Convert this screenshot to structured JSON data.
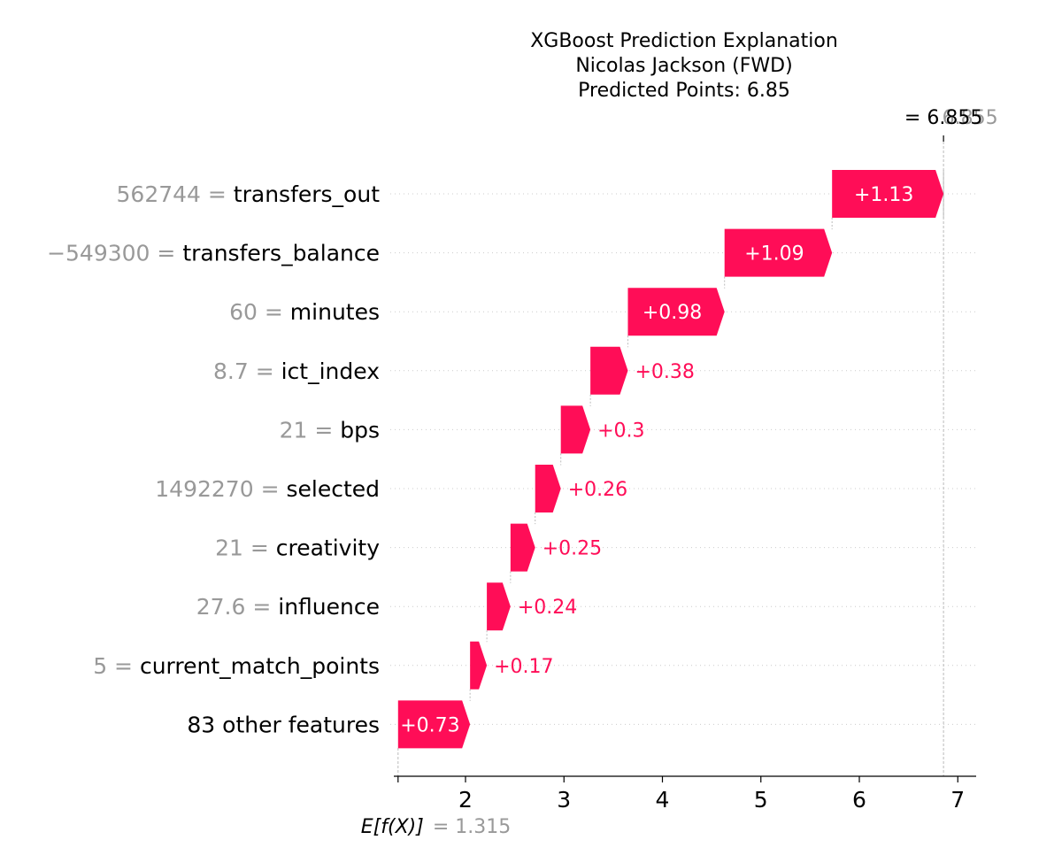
{
  "chart_data": {
    "type": "waterfall",
    "title": [
      "XGBoost Prediction Explanation",
      "Nicolas Jackson (FWD)",
      "Predicted Points: 6.85"
    ],
    "base_value": 1.315,
    "base_label_left": "E[f(X)]",
    "base_label_right": "= 1.315",
    "final_value": 6.855,
    "final_label": "= 6.855",
    "final_label_ghost": "6.855",
    "xlim": [
      1.0,
      7.2
    ],
    "x_ticks": [
      2,
      3,
      4,
      5,
      6,
      7
    ],
    "positive_color": "#ff0d57",
    "features": [
      {
        "value": "562744",
        "name": "transfers_out",
        "contribution": 1.13,
        "label": "+1.13"
      },
      {
        "value": "−549300",
        "name": "transfers_balance",
        "contribution": 1.09,
        "label": "+1.09"
      },
      {
        "value": "60",
        "name": "minutes",
        "contribution": 0.98,
        "label": "+0.98"
      },
      {
        "value": "8.7",
        "name": "ict_index",
        "contribution": 0.38,
        "label": "+0.38"
      },
      {
        "value": "21",
        "name": "bps",
        "contribution": 0.3,
        "label": "+0.3"
      },
      {
        "value": "1492270",
        "name": "selected",
        "contribution": 0.26,
        "label": "+0.26"
      },
      {
        "value": "21",
        "name": "creativity",
        "contribution": 0.25,
        "label": "+0.25"
      },
      {
        "value": "27.6",
        "name": "influence",
        "contribution": 0.24,
        "label": "+0.24"
      },
      {
        "value": "5",
        "name": "current_match_points",
        "contribution": 0.17,
        "label": "+0.17"
      },
      {
        "value": "",
        "name": "83 other features",
        "contribution": 0.73,
        "label": "+0.73"
      }
    ]
  }
}
